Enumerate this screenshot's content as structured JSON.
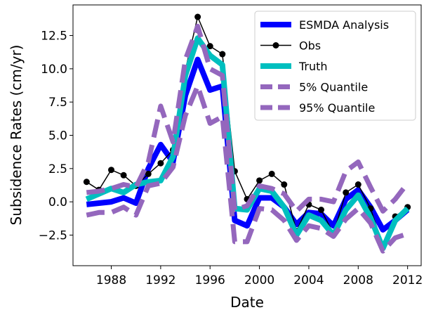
{
  "chart_data": {
    "type": "line",
    "title": "",
    "xlabel": "Date",
    "ylabel": "Subsidence Rates (cm/yr)",
    "xlim": [
      1984.9,
      2013.1
    ],
    "ylim": [
      -4.8,
      14.8
    ],
    "xticks": [
      1988,
      1992,
      1996,
      2000,
      2004,
      2008,
      2012
    ],
    "xtick_labels": [
      "1988",
      "1992",
      "1996",
      "2000",
      "2004",
      "2008",
      "2012"
    ],
    "yticks": [
      -2.5,
      0.0,
      2.5,
      5.0,
      7.5,
      10.0,
      12.5
    ],
    "ytick_labels": [
      "−2.5",
      "0.0",
      "2.5",
      "5.0",
      "7.5",
      "10.0",
      "12.5"
    ],
    "grid": false,
    "legend_position": "top-right",
    "x": [
      1986,
      1987,
      1988,
      1989,
      1990,
      1991,
      1992,
      1993,
      1994,
      1995,
      1996,
      1997,
      1998,
      1999,
      2000,
      2001,
      2002,
      2003,
      2004,
      2005,
      2006,
      2007,
      2008,
      2009,
      2010,
      2011,
      2012
    ],
    "series": [
      {
        "name": "ESMDA Analysis",
        "color": "#0000ff",
        "style": "solid-thick",
        "values": [
          -0.2,
          -0.1,
          0.0,
          0.3,
          -0.1,
          2.5,
          4.3,
          3.0,
          8.0,
          10.7,
          8.4,
          8.7,
          -1.4,
          -1.8,
          0.3,
          0.3,
          -0.4,
          -1.7,
          -0.8,
          -0.9,
          -1.8,
          0.2,
          0.9,
          -0.4,
          -2.1,
          -1.4,
          -0.6
        ]
      },
      {
        "name": "Obs",
        "color": "#000000",
        "style": "line-marker",
        "values": [
          1.5,
          0.9,
          2.4,
          2.0,
          1.2,
          2.1,
          2.9,
          3.9,
          9.9,
          13.9,
          11.7,
          11.1,
          2.3,
          0.2,
          1.6,
          2.1,
          1.3,
          -2.2,
          -0.2,
          -0.6,
          -2.4,
          0.7,
          1.3,
          -0.5,
          -3.3,
          -1.1,
          -0.4
        ]
      },
      {
        "name": "Truth",
        "color": "#00bfbf",
        "style": "solid-thick",
        "values": [
          0.2,
          0.6,
          1.0,
          0.7,
          1.3,
          1.5,
          1.6,
          3.4,
          9.5,
          12.3,
          11.0,
          10.3,
          -0.5,
          -0.6,
          1.0,
          0.8,
          -0.4,
          -2.5,
          -1.0,
          -1.4,
          -2.5,
          -0.6,
          0.5,
          -1.2,
          -3.5,
          -1.4,
          -0.5
        ]
      },
      {
        "name": "5% Quantile",
        "color": "#9467bd",
        "style": "dashed-thick",
        "values": [
          -1.0,
          -0.8,
          -0.8,
          -0.4,
          -1.0,
          1.2,
          1.4,
          2.6,
          6.5,
          8.7,
          5.9,
          6.4,
          -3.0,
          -3.0,
          -0.5,
          -0.6,
          -1.4,
          -2.9,
          -1.8,
          -2.0,
          -2.6,
          -1.3,
          -0.5,
          -1.6,
          -3.7,
          -2.7,
          -2.4
        ]
      },
      {
        "name": "95% Quantile",
        "color": "#9467bd",
        "style": "dashed-thick",
        "values": [
          0.7,
          0.8,
          1.0,
          1.3,
          1.1,
          3.0,
          7.2,
          4.5,
          10.7,
          13.2,
          10.0,
          9.5,
          -0.6,
          -0.3,
          1.2,
          1.0,
          0.6,
          -0.7,
          0.2,
          0.2,
          0.0,
          2.3,
          3.0,
          1.1,
          -0.7,
          0.2,
          1.4
        ]
      }
    ]
  }
}
